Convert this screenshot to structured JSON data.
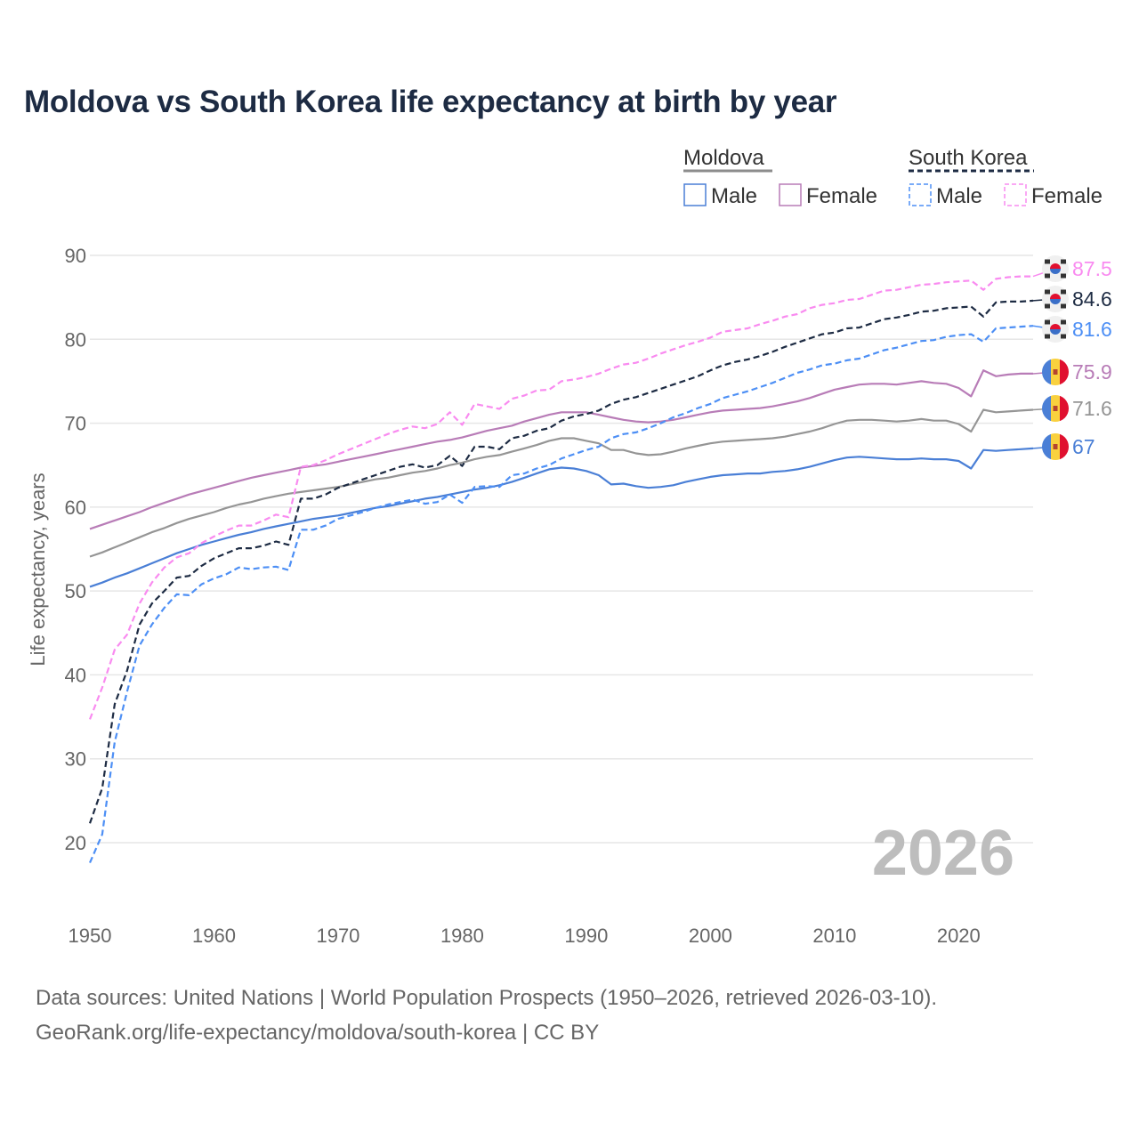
{
  "title": "Moldova vs South Korea life expectancy at birth by year",
  "source_line1": "Data sources: United Nations | World Population Prospects (1950–2026, retrieved 2026-03-10).",
  "source_line2": "GeoRank.org/life-expectancy/moldova/south-korea | CC BY",
  "legend": {
    "groups": [
      {
        "name": "Moldova",
        "style": "solid",
        "color": "#8c8c8c",
        "items": [
          "Male",
          "Female"
        ]
      },
      {
        "name": "South Korea",
        "style": "dashed",
        "color": "#1d2b43",
        "items": [
          "Male",
          "Female"
        ]
      }
    ]
  },
  "chart_data": {
    "type": "line",
    "title": "Moldova vs South Korea life expectancy at birth by year",
    "xlabel": "",
    "ylabel": "Life expectancy, years",
    "xlim": [
      1950,
      2026
    ],
    "ylim": [
      20,
      90
    ],
    "x_ticks": [
      "1950",
      "1960",
      "1970",
      "1980",
      "1990",
      "2000",
      "2010",
      "2020"
    ],
    "y_ticks": [
      "20",
      "30",
      "40",
      "50",
      "60",
      "70",
      "80",
      "90"
    ],
    "year_watermark": "2026",
    "x_start": 1950,
    "series": [
      {
        "name": "Moldova Male",
        "country": "Moldova",
        "color": "#4a7fd6",
        "dash": false,
        "end_label": "67",
        "values": [
          50.5,
          51.0,
          51.6,
          52.1,
          52.7,
          53.3,
          53.9,
          54.5,
          55.0,
          55.5,
          55.9,
          56.3,
          56.7,
          57.0,
          57.4,
          57.7,
          58.0,
          58.3,
          58.6,
          58.8,
          59.0,
          59.3,
          59.6,
          59.9,
          60.1,
          60.4,
          60.7,
          61.0,
          61.2,
          61.5,
          61.8,
          62.1,
          62.3,
          62.6,
          63.0,
          63.5,
          64.0,
          64.5,
          64.7,
          64.6,
          64.3,
          63.8,
          62.7,
          62.8,
          62.5,
          62.3,
          62.4,
          62.6,
          63.0,
          63.3,
          63.6,
          63.8,
          63.9,
          64.0,
          64.0,
          64.2,
          64.3,
          64.5,
          64.8,
          65.2,
          65.6,
          65.9,
          66.0,
          65.9,
          65.8,
          65.7,
          65.7,
          65.8,
          65.7,
          65.7,
          65.5,
          64.6,
          66.8,
          66.7,
          66.8,
          66.9,
          67.0
        ]
      },
      {
        "name": "Moldova",
        "country": "Moldova",
        "color": "#959595",
        "dash": false,
        "end_label": "71.6",
        "values": [
          54.1,
          54.6,
          55.2,
          55.8,
          56.4,
          57.0,
          57.5,
          58.1,
          58.6,
          59.0,
          59.4,
          59.9,
          60.3,
          60.6,
          61.0,
          61.3,
          61.6,
          61.8,
          62.0,
          62.2,
          62.4,
          62.7,
          63.0,
          63.3,
          63.5,
          63.8,
          64.1,
          64.3,
          64.6,
          65.0,
          65.3,
          65.7,
          66.0,
          66.2,
          66.6,
          67.0,
          67.4,
          67.9,
          68.2,
          68.2,
          67.9,
          67.6,
          66.8,
          66.8,
          66.4,
          66.2,
          66.3,
          66.6,
          67.0,
          67.3,
          67.6,
          67.8,
          67.9,
          68.0,
          68.1,
          68.2,
          68.4,
          68.7,
          69.0,
          69.4,
          69.9,
          70.3,
          70.4,
          70.4,
          70.3,
          70.2,
          70.3,
          70.5,
          70.3,
          70.3,
          69.9,
          69.0,
          71.6,
          71.3,
          71.4,
          71.5,
          71.6
        ]
      },
      {
        "name": "Moldova Female",
        "country": "Moldova",
        "color": "#b87cb7",
        "dash": false,
        "end_label": "75.9",
        "values": [
          57.4,
          57.9,
          58.4,
          58.9,
          59.4,
          60.0,
          60.5,
          61.0,
          61.5,
          61.9,
          62.3,
          62.7,
          63.1,
          63.5,
          63.8,
          64.1,
          64.4,
          64.7,
          64.9,
          65.1,
          65.4,
          65.7,
          66.0,
          66.3,
          66.6,
          66.9,
          67.2,
          67.5,
          67.8,
          68.0,
          68.3,
          68.7,
          69.1,
          69.4,
          69.7,
          70.2,
          70.6,
          71.0,
          71.3,
          71.3,
          71.3,
          71.0,
          70.7,
          70.4,
          70.2,
          70.1,
          70.2,
          70.4,
          70.7,
          71.0,
          71.3,
          71.5,
          71.6,
          71.7,
          71.8,
          72.0,
          72.3,
          72.6,
          73.0,
          73.5,
          74.0,
          74.3,
          74.6,
          74.7,
          74.7,
          74.6,
          74.8,
          75.0,
          74.8,
          74.7,
          74.2,
          73.2,
          76.3,
          75.6,
          75.8,
          75.9,
          75.9
        ]
      },
      {
        "name": "South Korea Male",
        "country": "South Korea",
        "color": "#4d8ff5",
        "dash": true,
        "end_label": "81.6",
        "values": [
          17.6,
          21.0,
          32.0,
          38.0,
          43.5,
          46.0,
          48.0,
          49.6,
          49.5,
          50.8,
          51.5,
          52.0,
          52.8,
          52.6,
          52.8,
          52.9,
          52.5,
          57.3,
          57.3,
          57.8,
          58.6,
          59.0,
          59.4,
          59.9,
          60.3,
          60.6,
          60.9,
          60.4,
          60.6,
          61.5,
          60.5,
          62.4,
          62.5,
          62.4,
          63.8,
          64.0,
          64.6,
          65.0,
          65.8,
          66.3,
          66.8,
          67.2,
          68.2,
          68.7,
          68.9,
          69.4,
          70.0,
          70.7,
          71.2,
          71.8,
          72.3,
          73.0,
          73.4,
          73.8,
          74.3,
          74.8,
          75.4,
          76.0,
          76.4,
          76.9,
          77.1,
          77.5,
          77.7,
          78.2,
          78.7,
          79.0,
          79.4,
          79.8,
          79.9,
          80.3,
          80.5,
          80.6,
          79.7,
          81.3,
          81.4,
          81.5,
          81.6
        ]
      },
      {
        "name": "South Korea",
        "country": "South Korea",
        "color": "#1d2b43",
        "dash": true,
        "end_label": "84.6",
        "values": [
          22.3,
          26.5,
          36.5,
          40.5,
          46.0,
          48.5,
          50.0,
          51.6,
          51.8,
          53.0,
          53.9,
          54.5,
          55.1,
          55.1,
          55.4,
          55.9,
          55.5,
          61.0,
          61.0,
          61.5,
          62.3,
          62.8,
          63.3,
          63.8,
          64.3,
          64.8,
          65.1,
          64.7,
          65.0,
          66.1,
          64.9,
          67.2,
          67.2,
          66.9,
          68.2,
          68.5,
          69.1,
          69.4,
          70.3,
          70.8,
          71.1,
          71.5,
          72.3,
          72.8,
          73.1,
          73.6,
          74.1,
          74.6,
          75.1,
          75.6,
          76.3,
          76.9,
          77.3,
          77.6,
          78.0,
          78.5,
          79.1,
          79.6,
          80.1,
          80.6,
          80.8,
          81.3,
          81.4,
          81.9,
          82.4,
          82.6,
          82.9,
          83.3,
          83.4,
          83.7,
          83.8,
          83.9,
          82.7,
          84.4,
          84.5,
          84.5,
          84.6
        ]
      },
      {
        "name": "South Korea Female",
        "country": "South Korea",
        "color": "#f98bf0",
        "dash": true,
        "end_label": "87.5",
        "values": [
          34.7,
          38.5,
          43.0,
          44.8,
          48.5,
          51.0,
          52.8,
          54.0,
          54.5,
          55.7,
          56.5,
          57.2,
          57.8,
          57.8,
          58.4,
          59.1,
          58.8,
          64.8,
          65.0,
          65.6,
          66.3,
          66.9,
          67.5,
          68.1,
          68.7,
          69.2,
          69.6,
          69.4,
          69.9,
          71.3,
          69.8,
          72.3,
          72.0,
          71.7,
          72.9,
          73.3,
          73.9,
          74.0,
          75.0,
          75.2,
          75.5,
          75.9,
          76.5,
          77.0,
          77.2,
          77.7,
          78.3,
          78.8,
          79.3,
          79.7,
          80.2,
          80.9,
          81.1,
          81.3,
          81.8,
          82.2,
          82.7,
          83.0,
          83.7,
          84.1,
          84.3,
          84.7,
          84.8,
          85.3,
          85.8,
          85.9,
          86.2,
          86.5,
          86.6,
          86.8,
          86.9,
          87.0,
          85.9,
          87.2,
          87.4,
          87.5,
          87.5
        ]
      }
    ]
  }
}
